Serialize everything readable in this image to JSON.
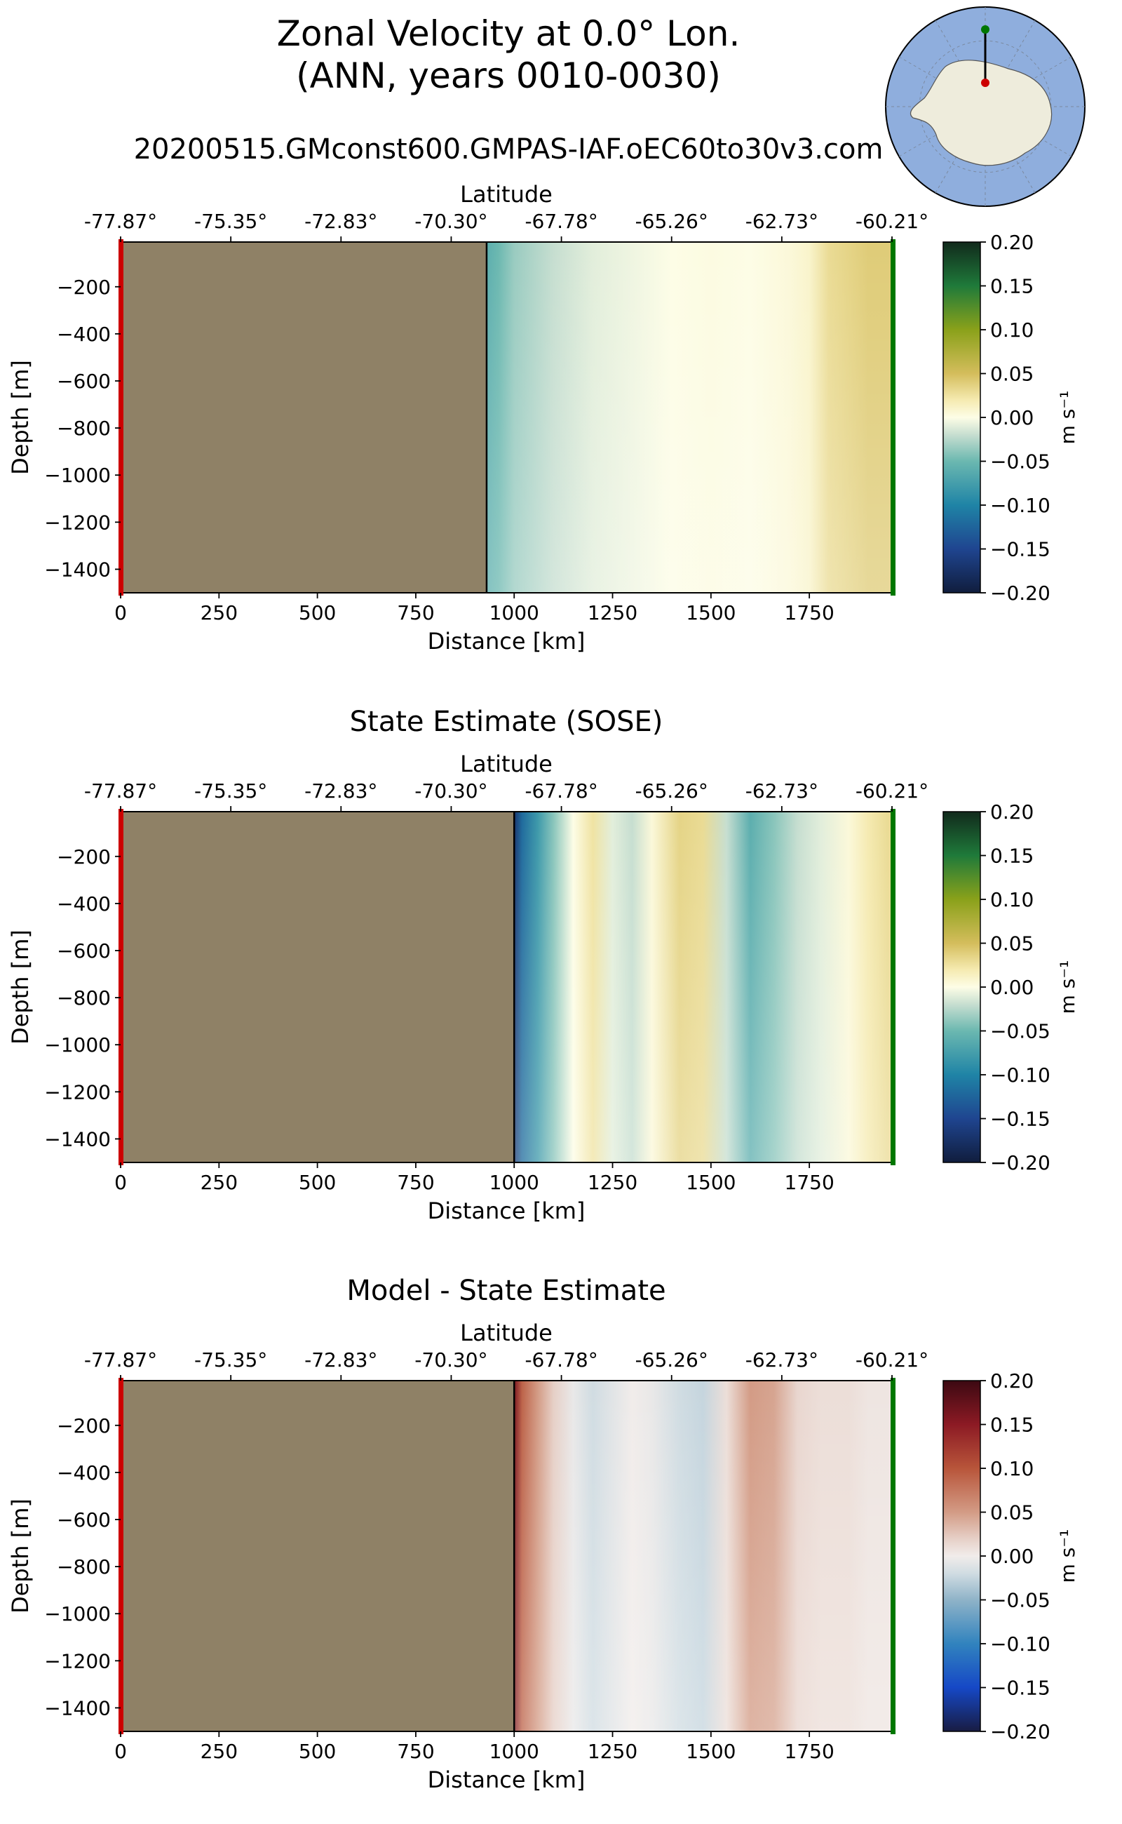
{
  "figure": {
    "title_line1": "Zonal Velocity at 0.0° Lon.",
    "title_line2": "(ANN, years 0010-0030)",
    "run_name": "20200515.GMconst600.GMPAS-IAF.oEC60to30v3.com"
  },
  "chart_data": [
    {
      "type": "heatmap",
      "panel_title": "",
      "xlabel": "Distance [km]",
      "x_ticks": [
        0,
        250,
        500,
        750,
        1000,
        1250,
        1500,
        1750
      ],
      "xlim": [
        0,
        1960
      ],
      "top_xlabel": "Latitude",
      "top_ticks": [
        "-77.87°",
        "-75.35°",
        "-72.83°",
        "-70.30°",
        "-67.78°",
        "-65.26°",
        "-62.73°",
        "-60.21°"
      ],
      "ylabel": "Depth [m]",
      "y_ticks": [
        -200,
        -400,
        -600,
        -800,
        -1000,
        -1200,
        -1400
      ],
      "ylim": [
        -1500,
        -10
      ],
      "land_until_km": 930,
      "colorbar": {
        "label": "m s⁻¹",
        "ticks": [
          "0.20",
          "0.15",
          "0.10",
          "0.05",
          "0.00",
          "−0.05",
          "−0.10",
          "−0.15",
          "−0.20"
        ],
        "range": [
          -0.2,
          0.2
        ],
        "cmap": "delta"
      },
      "profile_km": [
        930,
        960,
        1000,
        1100,
        1200,
        1300,
        1400,
        1500,
        1600,
        1700,
        1750,
        1800,
        1850,
        1900,
        1950
      ],
      "profile_velocity": [
        -0.06,
        -0.05,
        -0.035,
        -0.02,
        -0.01,
        -0.005,
        0.0,
        0.002,
        0.0,
        0.005,
        0.01,
        0.03,
        0.035,
        0.04,
        0.04
      ]
    },
    {
      "type": "heatmap",
      "panel_title": "State Estimate (SOSE)",
      "xlabel": "Distance [km]",
      "x_ticks": [
        0,
        250,
        500,
        750,
        1000,
        1250,
        1500,
        1750
      ],
      "xlim": [
        0,
        1960
      ],
      "top_xlabel": "Latitude",
      "top_ticks": [
        "-77.87°",
        "-75.35°",
        "-72.83°",
        "-70.30°",
        "-67.78°",
        "-65.26°",
        "-62.73°",
        "-60.21°"
      ],
      "ylabel": "Depth [m]",
      "y_ticks": [
        -200,
        -400,
        -600,
        -800,
        -1000,
        -1200,
        -1400
      ],
      "ylim": [
        -1500,
        -10
      ],
      "land_until_km": 1000,
      "colorbar": {
        "label": "m s⁻¹",
        "ticks": [
          "0.20",
          "0.15",
          "0.10",
          "0.05",
          "0.00",
          "−0.05",
          "−0.10",
          "−0.15",
          "−0.20"
        ],
        "range": [
          -0.2,
          0.2
        ],
        "cmap": "delta"
      },
      "profile_km": [
        1000,
        1020,
        1060,
        1100,
        1150,
        1200,
        1250,
        1300,
        1350,
        1420,
        1480,
        1540,
        1600,
        1660,
        1720,
        1780,
        1850,
        1900,
        1950
      ],
      "profile_velocity": [
        -0.17,
        -0.12,
        -0.08,
        -0.04,
        0.0,
        0.025,
        -0.01,
        -0.02,
        0.005,
        0.035,
        0.03,
        -0.02,
        -0.06,
        -0.04,
        -0.02,
        -0.01,
        0.005,
        0.02,
        0.03
      ]
    },
    {
      "type": "heatmap",
      "panel_title": "Model - State Estimate",
      "xlabel": "Distance [km]",
      "x_ticks": [
        0,
        250,
        500,
        750,
        1000,
        1250,
        1500,
        1750
      ],
      "xlim": [
        0,
        1960
      ],
      "top_xlabel": "Latitude",
      "top_ticks": [
        "-77.87°",
        "-75.35°",
        "-72.83°",
        "-70.30°",
        "-67.78°",
        "-65.26°",
        "-62.73°",
        "-60.21°"
      ],
      "ylabel": "Depth [m]",
      "y_ticks": [
        -200,
        -400,
        -600,
        -800,
        -1000,
        -1200,
        -1400
      ],
      "ylim": [
        -1500,
        -10
      ],
      "land_until_km": 1000,
      "colorbar": {
        "label": "m s⁻¹",
        "ticks": [
          "0.20",
          "0.15",
          "0.10",
          "0.05",
          "0.00",
          "−0.05",
          "−0.10",
          "−0.15",
          "−0.20"
        ],
        "range": [
          -0.2,
          0.2
        ],
        "cmap": "balance"
      },
      "profile_km": [
        1000,
        1020,
        1060,
        1100,
        1150,
        1200,
        1250,
        1300,
        1350,
        1420,
        1480,
        1540,
        1600,
        1660,
        1720,
        1780,
        1850,
        1900,
        1950
      ],
      "profile_velocity": [
        0.16,
        0.09,
        0.05,
        0.02,
        -0.005,
        -0.02,
        -0.01,
        0.0,
        -0.005,
        -0.02,
        -0.025,
        0.01,
        0.05,
        0.045,
        0.015,
        0.01,
        0.01,
        0.005,
        0.005
      ]
    }
  ],
  "colors": {
    "land": "#8f8166",
    "start_marker": "#cc0000",
    "end_marker": "#007700",
    "inset_ocean": "#8faedd",
    "inset_land": "#eeecdc"
  }
}
